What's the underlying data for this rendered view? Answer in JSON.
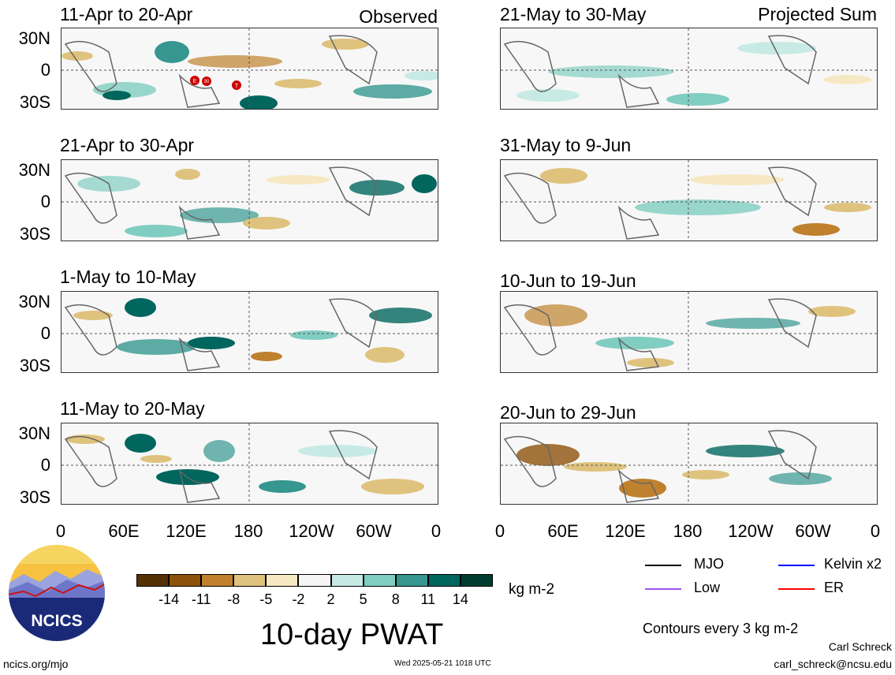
{
  "panels_left": [
    {
      "title": "11-Apr to 20-Apr",
      "tag": "Observed"
    },
    {
      "title": "21-Apr to 30-Apr",
      "tag": ""
    },
    {
      "title": "1-May to 10-May",
      "tag": ""
    },
    {
      "title": "11-May to 20-May",
      "tag": ""
    }
  ],
  "panels_right": [
    {
      "title": "21-May to 30-May",
      "tag": "Projected Sum"
    },
    {
      "title": "31-May to 9-Jun",
      "tag": ""
    },
    {
      "title": "10-Jun to 19-Jun",
      "tag": ""
    },
    {
      "title": "20-Jun to 29-Jun",
      "tag": ""
    }
  ],
  "lat_ticks": [
    "30N",
    "0",
    "30S"
  ],
  "lon_ticks": [
    "0",
    "60E",
    "120E",
    "180",
    "120W",
    "60W",
    "0"
  ],
  "markers": [
    "E",
    "30",
    "T"
  ],
  "colorbar": {
    "colors": [
      "#543005",
      "#8c510a",
      "#bf812d",
      "#dfc27d",
      "#f6e8c3",
      "#f5f5f5",
      "#c7eae5",
      "#80cdc1",
      "#35978f",
      "#01665e",
      "#003c30"
    ],
    "labels": [
      "-14",
      "-11",
      "-8",
      "-5",
      "-2",
      "2",
      "5",
      "8",
      "11",
      "14"
    ],
    "units": "kg m-2"
  },
  "legend": [
    {
      "label": "MJO",
      "color": "#000000"
    },
    {
      "label": "Kelvin x2",
      "color": "#0000ff"
    },
    {
      "label": "Low",
      "color": "#a050f0"
    },
    {
      "label": "ER",
      "color": "#ff0000"
    }
  ],
  "main_title": "10-day PWAT",
  "contour_note": "Contours every 3 kg m-2",
  "logo_text": "NCICS",
  "url": "ncics.org/mjo",
  "timestamp": "Wed 2025-05-21 1018 UTC",
  "author": "Carl Schreck",
  "email": "carl_schreck@ncsu.edu"
}
